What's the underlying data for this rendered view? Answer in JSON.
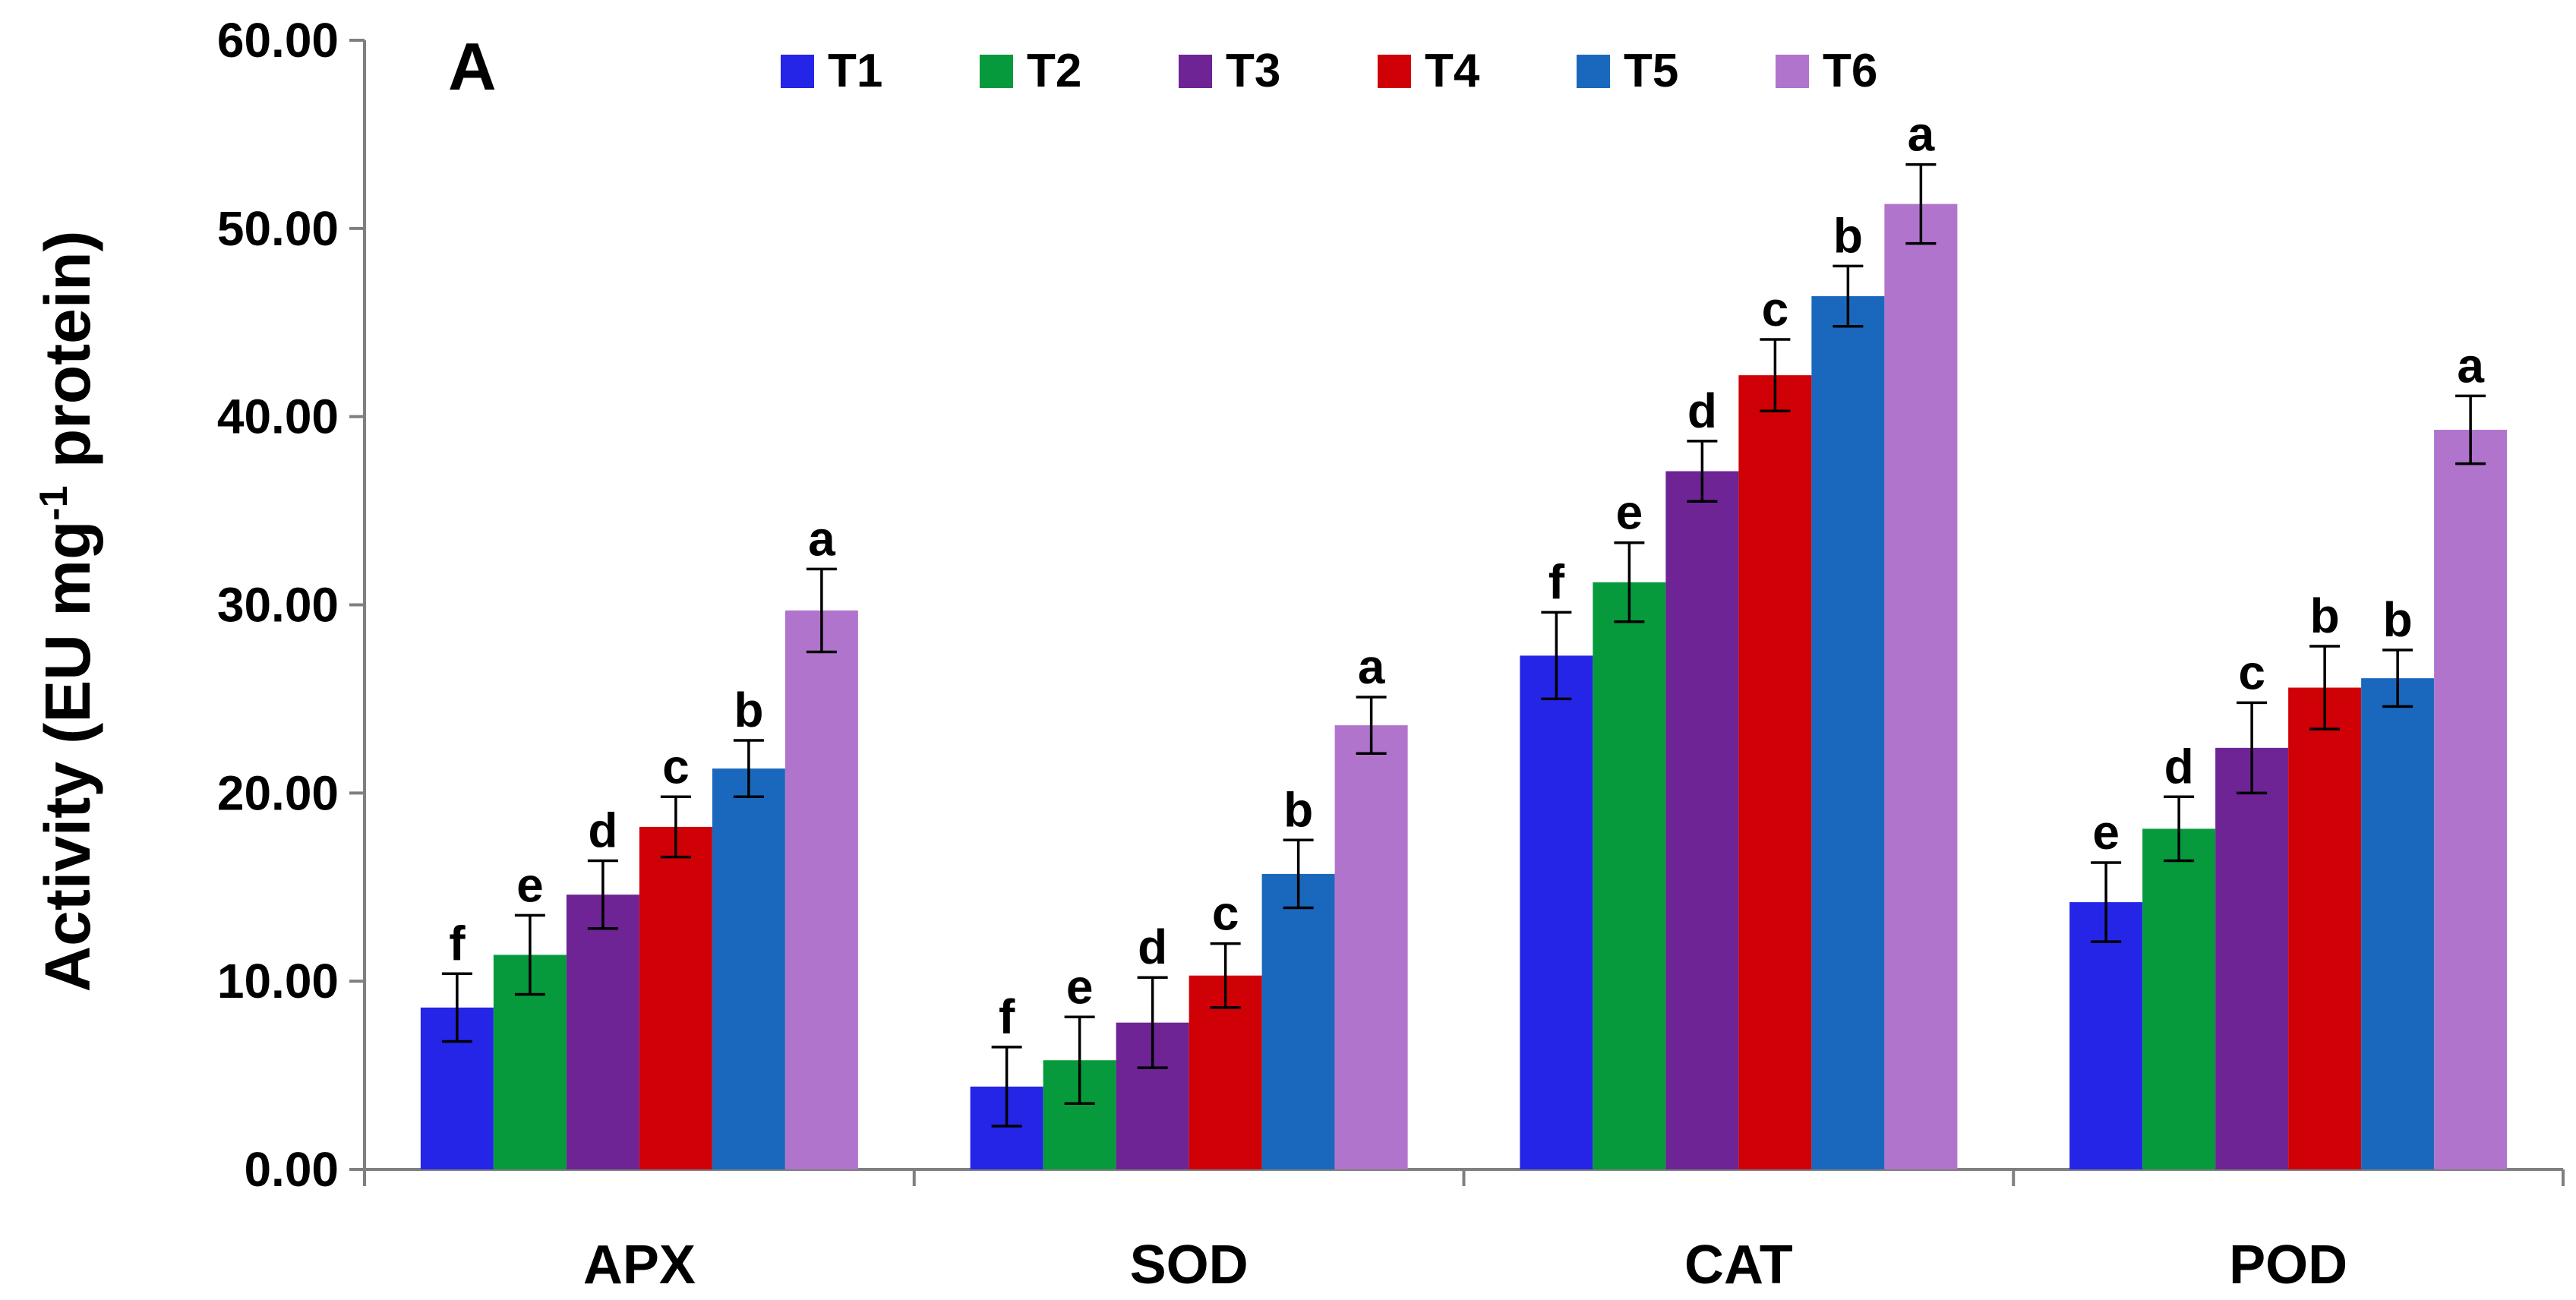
{
  "chart_data": {
    "type": "bar",
    "panel_label": "A",
    "ylabel": {
      "main": "Activity (EU mg",
      "sup": "-1",
      "end": " protein)"
    },
    "ylim": [
      0,
      60
    ],
    "yticks": [
      "0.00",
      "10.00",
      "20.00",
      "30.00",
      "40.00",
      "50.00",
      "60.00"
    ],
    "grid": false,
    "legend_position": "top",
    "categories": [
      "APX",
      "SOD",
      "CAT",
      "POD"
    ],
    "series": [
      {
        "name": "T1",
        "color": "#2525e8",
        "values": [
          8.6,
          4.4,
          27.3,
          14.2
        ],
        "errors": [
          1.8,
          2.1,
          2.3,
          2.1
        ],
        "letters": [
          "f",
          "f",
          "f",
          "e"
        ]
      },
      {
        "name": "T2",
        "color": "#079a3c",
        "values": [
          11.4,
          5.8,
          31.2,
          18.1
        ],
        "errors": [
          2.1,
          2.3,
          2.1,
          1.7
        ],
        "letters": [
          "e",
          "e",
          "e",
          "d"
        ]
      },
      {
        "name": "T3",
        "color": "#6e2494",
        "values": [
          14.6,
          7.8,
          37.1,
          22.4
        ],
        "errors": [
          1.8,
          2.4,
          1.6,
          2.4
        ],
        "letters": [
          "d",
          "d",
          "d",
          "c"
        ]
      },
      {
        "name": "T4",
        "color": "#cf0006",
        "values": [
          18.2,
          10.3,
          42.2,
          25.6
        ],
        "errors": [
          1.6,
          1.7,
          1.9,
          2.2
        ],
        "letters": [
          "c",
          "c",
          "c",
          "b"
        ]
      },
      {
        "name": "T5",
        "color": "#1a68bd",
        "values": [
          21.3,
          15.7,
          46.4,
          26.1
        ],
        "errors": [
          1.5,
          1.8,
          1.6,
          1.5
        ],
        "letters": [
          "b",
          "b",
          "b",
          "b"
        ]
      },
      {
        "name": "T6",
        "color": "#b174cc",
        "values": [
          29.7,
          23.6,
          51.3,
          39.3
        ],
        "errors": [
          2.2,
          1.5,
          2.1,
          1.8
        ],
        "letters": [
          "a",
          "a",
          "a",
          "a"
        ]
      }
    ]
  }
}
